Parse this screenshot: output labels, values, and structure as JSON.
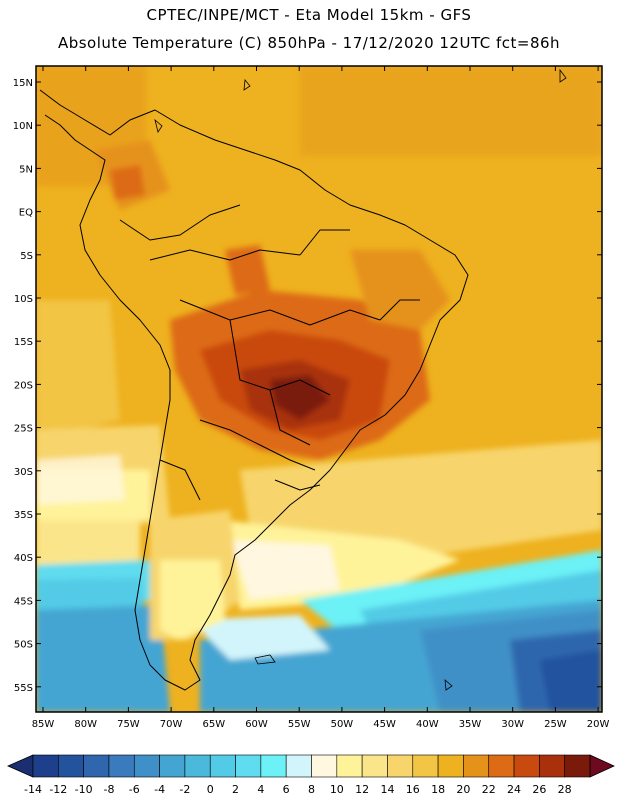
{
  "header": {
    "line1": "CPTEC/INPE/MCT -  Eta Model 15km - GFS",
    "line2": "Absolute Temperature (C) 850hPa - 17/12/2020 12UTC fct=86h"
  },
  "axes": {
    "lat_labels": [
      "15N",
      "10N",
      "5N",
      "EQ",
      "5S",
      "10S",
      "15S",
      "20S",
      "25S",
      "30S",
      "35S",
      "40S",
      "45S",
      "50S",
      "55S"
    ],
    "lon_labels": [
      "85W",
      "80W",
      "75W",
      "70W",
      "65W",
      "60W",
      "55W",
      "50W",
      "45W",
      "40W",
      "35W",
      "30W",
      "25W",
      "20W"
    ]
  },
  "colorbar": {
    "labels": [
      "-14",
      "-12",
      "-10",
      "-8",
      "-6",
      "-4",
      "-2",
      "0",
      "2",
      "4",
      "6",
      "8",
      "10",
      "12",
      "14",
      "16",
      "18",
      "20",
      "22",
      "24",
      "26",
      "28"
    ],
    "colors": [
      "#1e3f8c",
      "#24539e",
      "#2f66ad",
      "#3a7bbd",
      "#3f90c8",
      "#44a5d2",
      "#4ab9dc",
      "#52cbe6",
      "#5fdcef",
      "#6cf1f6",
      "#d2f5fb",
      "#fff7e0",
      "#fff39a",
      "#fbe58a",
      "#f7d56c",
      "#f2c545",
      "#eeb11f",
      "#e5921a",
      "#dd6a14",
      "#c94a0e",
      "#a8300a",
      "#7a1a0a"
    ],
    "arrow_left_color": "#1b2f70",
    "arrow_right_color": "#6e0a20"
  },
  "map": {
    "region": "South America",
    "variable": "Absolute Temperature (C)",
    "level": "850hPa"
  }
}
